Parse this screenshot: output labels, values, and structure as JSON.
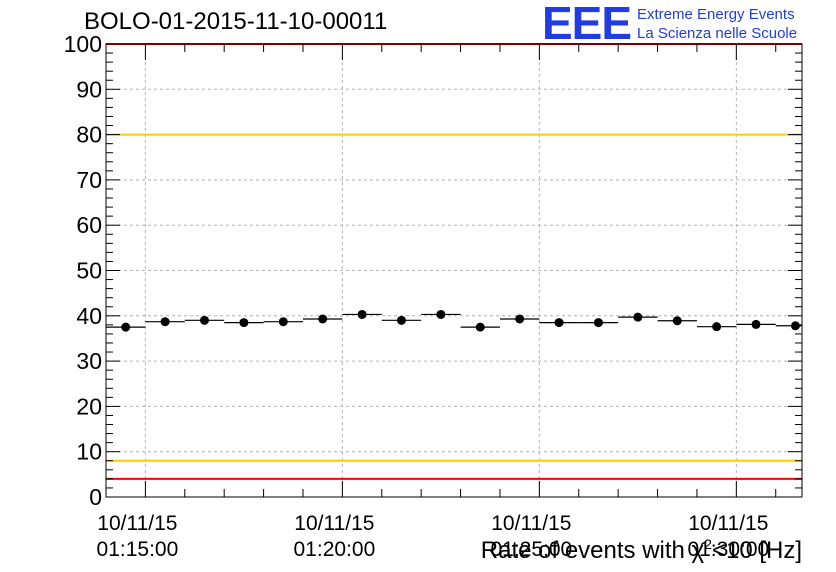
{
  "chart_data": {
    "type": "scatter",
    "title": "BOLO-01-2015-11-10-00011",
    "xlabel": "Rate of events with χ² < 10 [Hz]",
    "ylabel": "",
    "ylim": [
      0,
      100
    ],
    "yticks": [
      "0",
      "10",
      "20",
      "30",
      "40",
      "50",
      "60",
      "70",
      "80",
      "90",
      "100"
    ],
    "x_range_minutes": [
      "01:14:00",
      "01:31:40"
    ],
    "xticks": [
      {
        "date": "10/11/15",
        "time": "01:15:00",
        "minute": 75
      },
      {
        "date": "10/11/15",
        "time": "01:20:00",
        "minute": 80
      },
      {
        "date": "10/11/15",
        "time": "01:25:00",
        "minute": 85
      },
      {
        "date": "10/11/15",
        "time": "01:30:00",
        "minute": 90
      }
    ],
    "bin_width_minutes": 1,
    "series": [
      {
        "x_minutes": [
          74.5,
          75.5,
          76.5,
          77.5,
          78.5,
          79.5,
          80.5,
          81.5,
          82.5,
          83.5,
          84.5,
          85.5,
          86.5,
          87.5,
          88.5,
          89.5,
          90.5,
          91.5
        ],
        "values": [
          37.5,
          38.7,
          39.0,
          38.5,
          38.7,
          39.3,
          40.3,
          39.0,
          40.3,
          37.5,
          39.3,
          38.5,
          38.5,
          39.7,
          38.9,
          37.6,
          38.1,
          37.8
        ]
      }
    ],
    "reference_lines": [
      {
        "y": 4,
        "color": "#ff0000"
      },
      {
        "y": 8,
        "color": "#ffcc00"
      },
      {
        "y": 80,
        "color": "#ffcc00"
      },
      {
        "y": 100,
        "color": "#ff0000"
      }
    ],
    "grid": true
  },
  "logo": {
    "mark": "EEE",
    "line1": "Extreme Energy Events",
    "line2": "La Scienza nelle Scuole",
    "color": "#1f3de0"
  },
  "axis_title": {
    "prefix": "Rate of events with χ",
    "sup": "2",
    "suffix": "<10 [Hz]"
  }
}
